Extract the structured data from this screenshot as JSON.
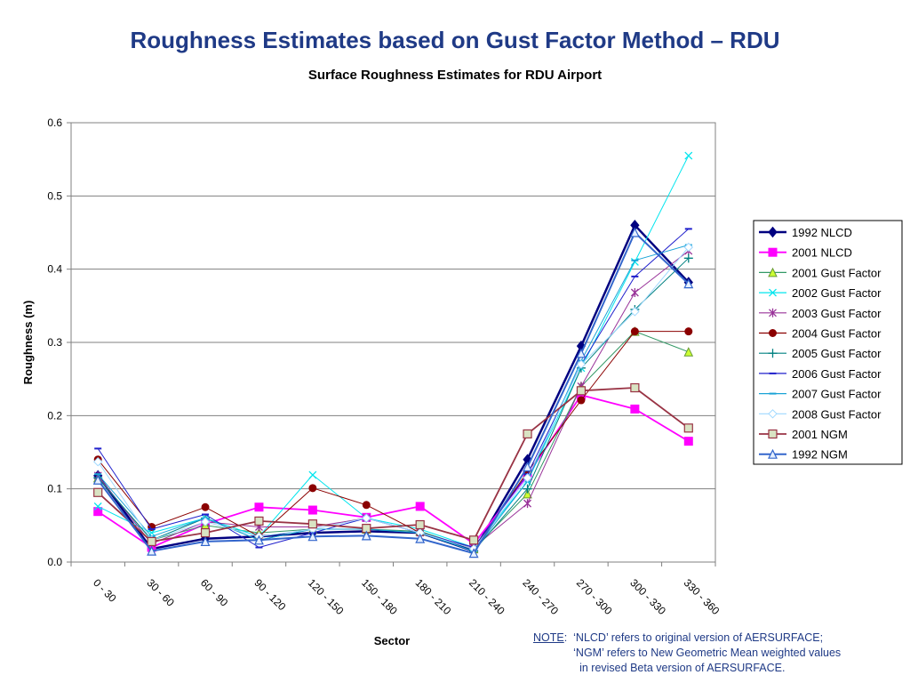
{
  "slide": {
    "title": "Roughness Estimates based on Gust Factor Method – RDU"
  },
  "note": {
    "label": "NOTE",
    "line1": ":  ‘NLCD’ refers to original version of AERSURFACE;",
    "line2": "             ‘NGM’ refers to New Geometric Mean weighted values",
    "line3": "               in revised Beta version of AERSURFACE."
  },
  "chart_data": {
    "type": "line",
    "title": "Surface Roughness Estimates for RDU Airport",
    "xlabel": "Sector",
    "ylabel": "Roughness (m)",
    "ylim": [
      0,
      0.6
    ],
    "yticks": [
      "0.0",
      "0.1",
      "0.2",
      "0.3",
      "0.4",
      "0.5",
      "0.6"
    ],
    "grid": "horizontal",
    "legend_position": "right",
    "categories": [
      "0 - 30",
      "30 - 60",
      "60 - 90",
      "90 - 120",
      "120 - 150",
      "150 - 180",
      "180 - 210",
      "210 - 240",
      "240 - 270",
      "270 - 300",
      "300 - 330",
      "330 - 360"
    ],
    "series": [
      {
        "name": "1992 NLCD",
        "color": "#000080",
        "marker": "diamond",
        "width": 2.5,
        "values": [
          0.118,
          0.018,
          0.032,
          0.035,
          0.04,
          0.042,
          0.04,
          0.015,
          0.14,
          0.295,
          0.46,
          0.382
        ]
      },
      {
        "name": "2001 NLCD",
        "color": "#ff00ff",
        "marker": "square",
        "width": 1.8,
        "values": [
          0.069,
          0.02,
          0.052,
          0.075,
          0.071,
          0.061,
          0.076,
          0.025,
          0.118,
          0.228,
          0.209,
          0.165
        ]
      },
      {
        "name": "2001 Gust Factor",
        "color": "#339966",
        "marker": "triangle-fill",
        "width": 1,
        "values": [
          0.115,
          0.03,
          0.05,
          0.04,
          0.045,
          0.045,
          0.042,
          0.018,
          0.093,
          0.24,
          0.315,
          0.287
        ]
      },
      {
        "name": "2002 Gust Factor",
        "color": "#00e5ee",
        "marker": "x",
        "width": 1,
        "values": [
          0.076,
          0.04,
          0.06,
          0.035,
          0.119,
          0.06,
          0.045,
          0.02,
          0.11,
          0.265,
          0.41,
          0.555
        ]
      },
      {
        "name": "2003 Gust Factor",
        "color": "#993399",
        "marker": "star",
        "width": 1,
        "values": [
          0.118,
          0.025,
          0.055,
          0.048,
          0.048,
          0.06,
          0.04,
          0.02,
          0.08,
          0.24,
          0.368,
          0.425
        ]
      },
      {
        "name": "2004 Gust Factor",
        "color": "#8b0000",
        "marker": "circle",
        "width": 1,
        "values": [
          0.14,
          0.048,
          0.075,
          0.035,
          0.101,
          0.078,
          0.04,
          0.018,
          0.123,
          0.221,
          0.315,
          0.315
        ]
      },
      {
        "name": "2005 Gust Factor",
        "color": "#008080",
        "marker": "plus",
        "width": 1,
        "values": [
          0.115,
          0.03,
          0.06,
          0.03,
          0.045,
          0.045,
          0.04,
          0.015,
          0.1,
          0.265,
          0.345,
          0.415
        ]
      },
      {
        "name": "2006 Gust Factor",
        "color": "#2020cc",
        "marker": "dash",
        "width": 1,
        "values": [
          0.155,
          0.045,
          0.065,
          0.02,
          0.04,
          0.06,
          0.04,
          0.02,
          0.12,
          0.27,
          0.39,
          0.455
        ]
      },
      {
        "name": "2007 Gust Factor",
        "color": "#1aa3d6",
        "marker": "dash",
        "width": 1,
        "values": [
          0.12,
          0.035,
          0.06,
          0.03,
          0.045,
          0.045,
          0.04,
          0.015,
          0.11,
          0.275,
          0.412,
          0.433
        ]
      },
      {
        "name": "2008 Gust Factor",
        "color": "#9fd8ff",
        "marker": "diamond-open",
        "width": 1,
        "values": [
          0.137,
          0.03,
          0.055,
          0.035,
          0.045,
          0.06,
          0.04,
          0.018,
          0.115,
          0.27,
          0.342,
          0.43
        ]
      },
      {
        "name": "2001 NGM",
        "color": "#993344",
        "marker": "square-open",
        "width": 1.8,
        "values": [
          0.095,
          0.028,
          0.04,
          0.056,
          0.052,
          0.046,
          0.051,
          0.03,
          0.175,
          0.234,
          0.238,
          0.183
        ]
      },
      {
        "name": "1992 NGM",
        "color": "#3366cc",
        "marker": "triangle-open",
        "width": 2,
        "values": [
          0.112,
          0.015,
          0.028,
          0.03,
          0.035,
          0.036,
          0.032,
          0.012,
          0.13,
          0.285,
          0.45,
          0.38
        ]
      }
    ]
  }
}
